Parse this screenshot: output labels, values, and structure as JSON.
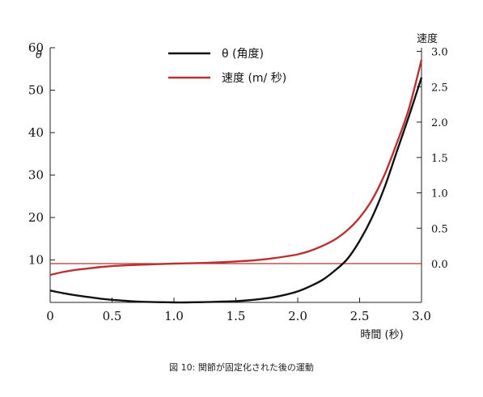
{
  "chart_data": {
    "type": "line",
    "caption": "図 10: 関節が固定化された後の運動",
    "xlabel": "時間 (秒)",
    "ylabel_left": "θ",
    "ylabel_right": "速度",
    "xlim": [
      0,
      3.0
    ],
    "ylim_left": [
      0,
      60
    ],
    "ylim_right": [
      -0.5,
      3.0
    ],
    "x_ticks": [
      "0",
      "0.5",
      "1.0",
      "1.5",
      "2.0",
      "2.5",
      "3.0"
    ],
    "x_tick_values": [
      0,
      0.5,
      1.0,
      1.5,
      2.0,
      2.5,
      3.0
    ],
    "y_left_ticks": [
      "10",
      "20",
      "30",
      "40",
      "50",
      "60"
    ],
    "y_left_tick_values": [
      10,
      20,
      30,
      40,
      50,
      60
    ],
    "y_right_ticks": [
      "0.0",
      "0.5",
      "1.0",
      "1.5",
      "2.0",
      "2.5",
      "3.0"
    ],
    "y_right_tick_values": [
      0,
      0.5,
      1.0,
      1.5,
      2.0,
      2.5,
      3.0
    ],
    "legend_position": "top-center",
    "grid": false,
    "series": [
      {
        "name": "θ (角度)",
        "axis": "left",
        "color": "#111111",
        "x": [
          0,
          0.1,
          0.2,
          0.3,
          0.4,
          0.5,
          0.6,
          0.7,
          0.8,
          0.9,
          1.0,
          1.1,
          1.2,
          1.3,
          1.4,
          1.5,
          1.6,
          1.7,
          1.8,
          1.9,
          2.0,
          2.1,
          2.2,
          2.3,
          2.4,
          2.5,
          2.6,
          2.7,
          2.8,
          2.9,
          3.0
        ],
        "y": [
          2.8,
          2.2,
          1.7,
          1.3,
          0.9,
          0.6,
          0.4,
          0.2,
          0.1,
          0.05,
          0.0,
          0.0,
          0.05,
          0.1,
          0.2,
          0.3,
          0.5,
          0.8,
          1.2,
          1.8,
          2.6,
          3.8,
          5.3,
          7.5,
          10.2,
          14.5,
          20.0,
          27.0,
          35.5,
          44.0,
          53.0
        ]
      },
      {
        "name": "速度 (m/ 秒)",
        "axis": "right",
        "color": "#b83232",
        "x": [
          0,
          0.1,
          0.2,
          0.3,
          0.4,
          0.5,
          0.6,
          0.7,
          0.8,
          0.9,
          1.0,
          1.1,
          1.2,
          1.3,
          1.4,
          1.5,
          1.6,
          1.7,
          1.8,
          1.9,
          2.0,
          2.1,
          2.2,
          2.3,
          2.4,
          2.5,
          2.6,
          2.7,
          2.8,
          2.9,
          3.0
        ],
        "y": [
          -0.16,
          -0.12,
          -0.09,
          -0.07,
          -0.05,
          -0.035,
          -0.025,
          -0.018,
          -0.012,
          -0.006,
          0.0,
          0.004,
          0.008,
          0.013,
          0.02,
          0.03,
          0.04,
          0.055,
          0.075,
          0.1,
          0.13,
          0.18,
          0.25,
          0.34,
          0.47,
          0.65,
          0.9,
          1.25,
          1.7,
          2.2,
          2.88
        ]
      }
    ],
    "reference_line": {
      "axis": "right",
      "y": 0.0,
      "color": "#b83232"
    }
  }
}
